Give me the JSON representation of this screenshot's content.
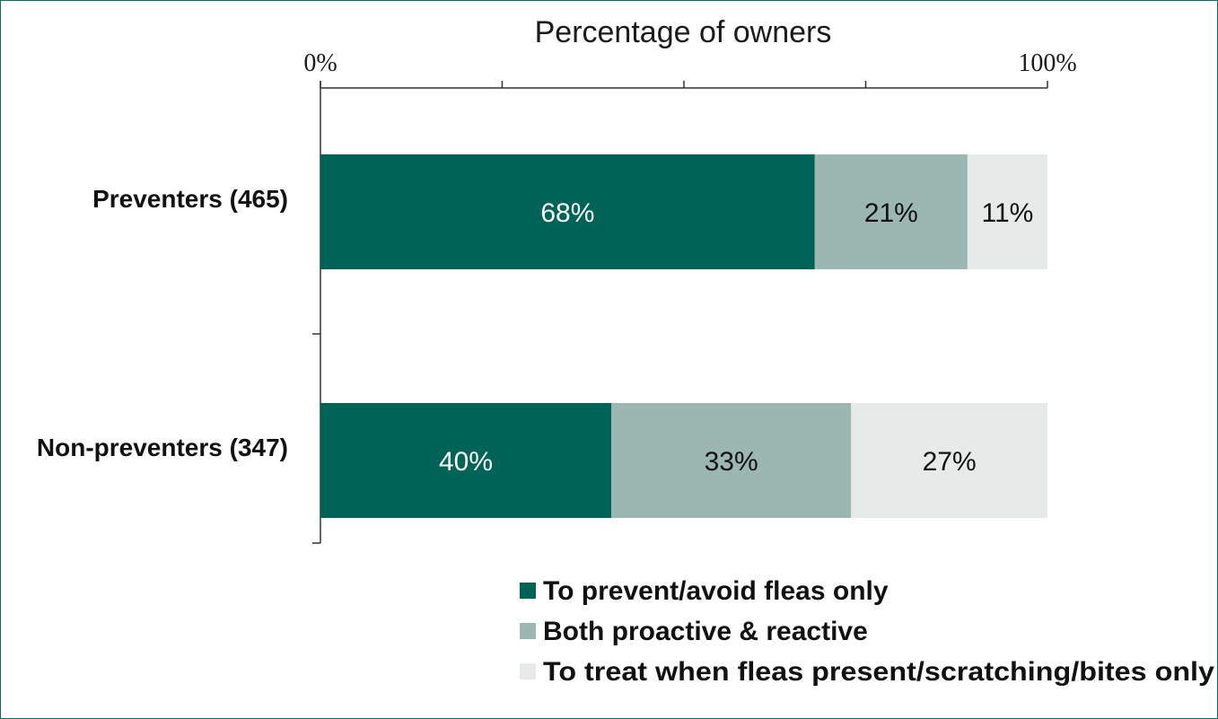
{
  "chart_data": {
    "type": "bar",
    "orientation": "horizontal",
    "stacked": true,
    "title": "",
    "xlabel": "Percentage of owners",
    "xlim": [
      0,
      100
    ],
    "x_tick_labels": [
      "0%",
      "100%"
    ],
    "x_tick_values": [
      0,
      25,
      50,
      75,
      100
    ],
    "categories": [
      "Preventers (465)",
      "Non-preventers (347)"
    ],
    "series": [
      {
        "name": "To prevent/avoid fleas only",
        "values": [
          68,
          40
        ],
        "labels": [
          "68%",
          "40%"
        ],
        "color": "#006357",
        "label_color": "#ffffff"
      },
      {
        "name": "Both proactive & reactive",
        "values": [
          21,
          33
        ],
        "labels": [
          "21%",
          "33%"
        ],
        "color": "#9cb7b2",
        "label_color": "#111111"
      },
      {
        "name": "To treat when fleas present/scratching/bites only",
        "values": [
          11,
          27
        ],
        "labels": [
          "11%",
          "27%"
        ],
        "color": "#e6ebea",
        "label_color": "#111111"
      }
    ],
    "grid": false,
    "legend_position": "bottom-right"
  }
}
